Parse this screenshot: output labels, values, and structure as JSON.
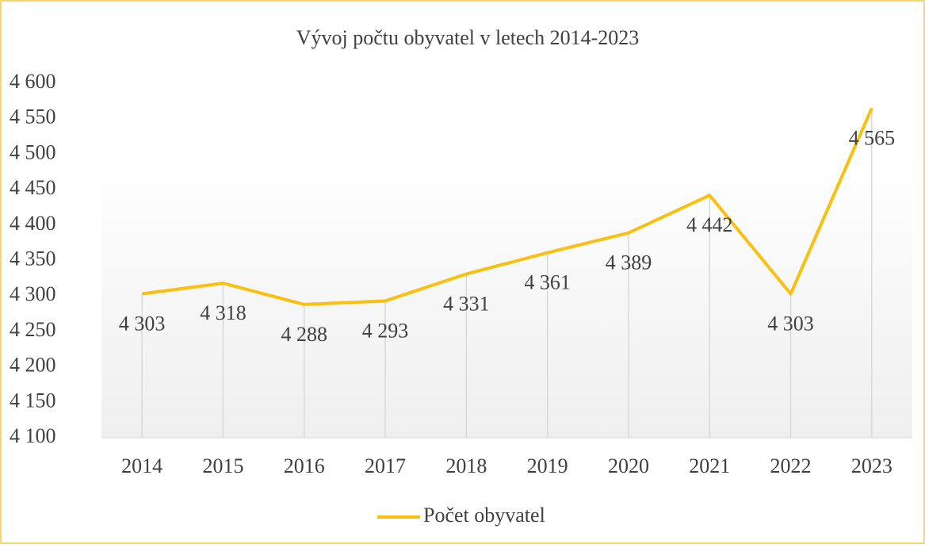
{
  "chart_data": {
    "type": "line",
    "title": "Vývoj počtu obyvatel v letech 2014-2023",
    "categories": [
      "2014",
      "2015",
      "2016",
      "2017",
      "2018",
      "2019",
      "2020",
      "2021",
      "2022",
      "2023"
    ],
    "series": [
      {
        "name": "Počet obyvatel",
        "color": "#fbbf10",
        "values": [
          4303,
          4318,
          4288,
          4293,
          4331,
          4361,
          4389,
          4442,
          4303,
          4565
        ],
        "value_labels": [
          "4 303",
          "4 318",
          "4 288",
          "4 293",
          "4 331",
          "4 361",
          "4 389",
          "4 442",
          "4 303",
          "4 565"
        ]
      }
    ],
    "ylim": [
      4100,
      4600
    ],
    "yticks": [
      {
        "value": 4100,
        "label": "4 100"
      },
      {
        "value": 4150,
        "label": "4 150"
      },
      {
        "value": 4200,
        "label": "4 200"
      },
      {
        "value": 4250,
        "label": "4 250"
      },
      {
        "value": 4300,
        "label": "4 300"
      },
      {
        "value": 4350,
        "label": "4 350"
      },
      {
        "value": 4400,
        "label": "4 400"
      },
      {
        "value": 4450,
        "label": "4 450"
      },
      {
        "value": 4500,
        "label": "4 500"
      },
      {
        "value": 4550,
        "label": "4 550"
      },
      {
        "value": 4600,
        "label": "4 600"
      }
    ],
    "legend": "bottom"
  }
}
